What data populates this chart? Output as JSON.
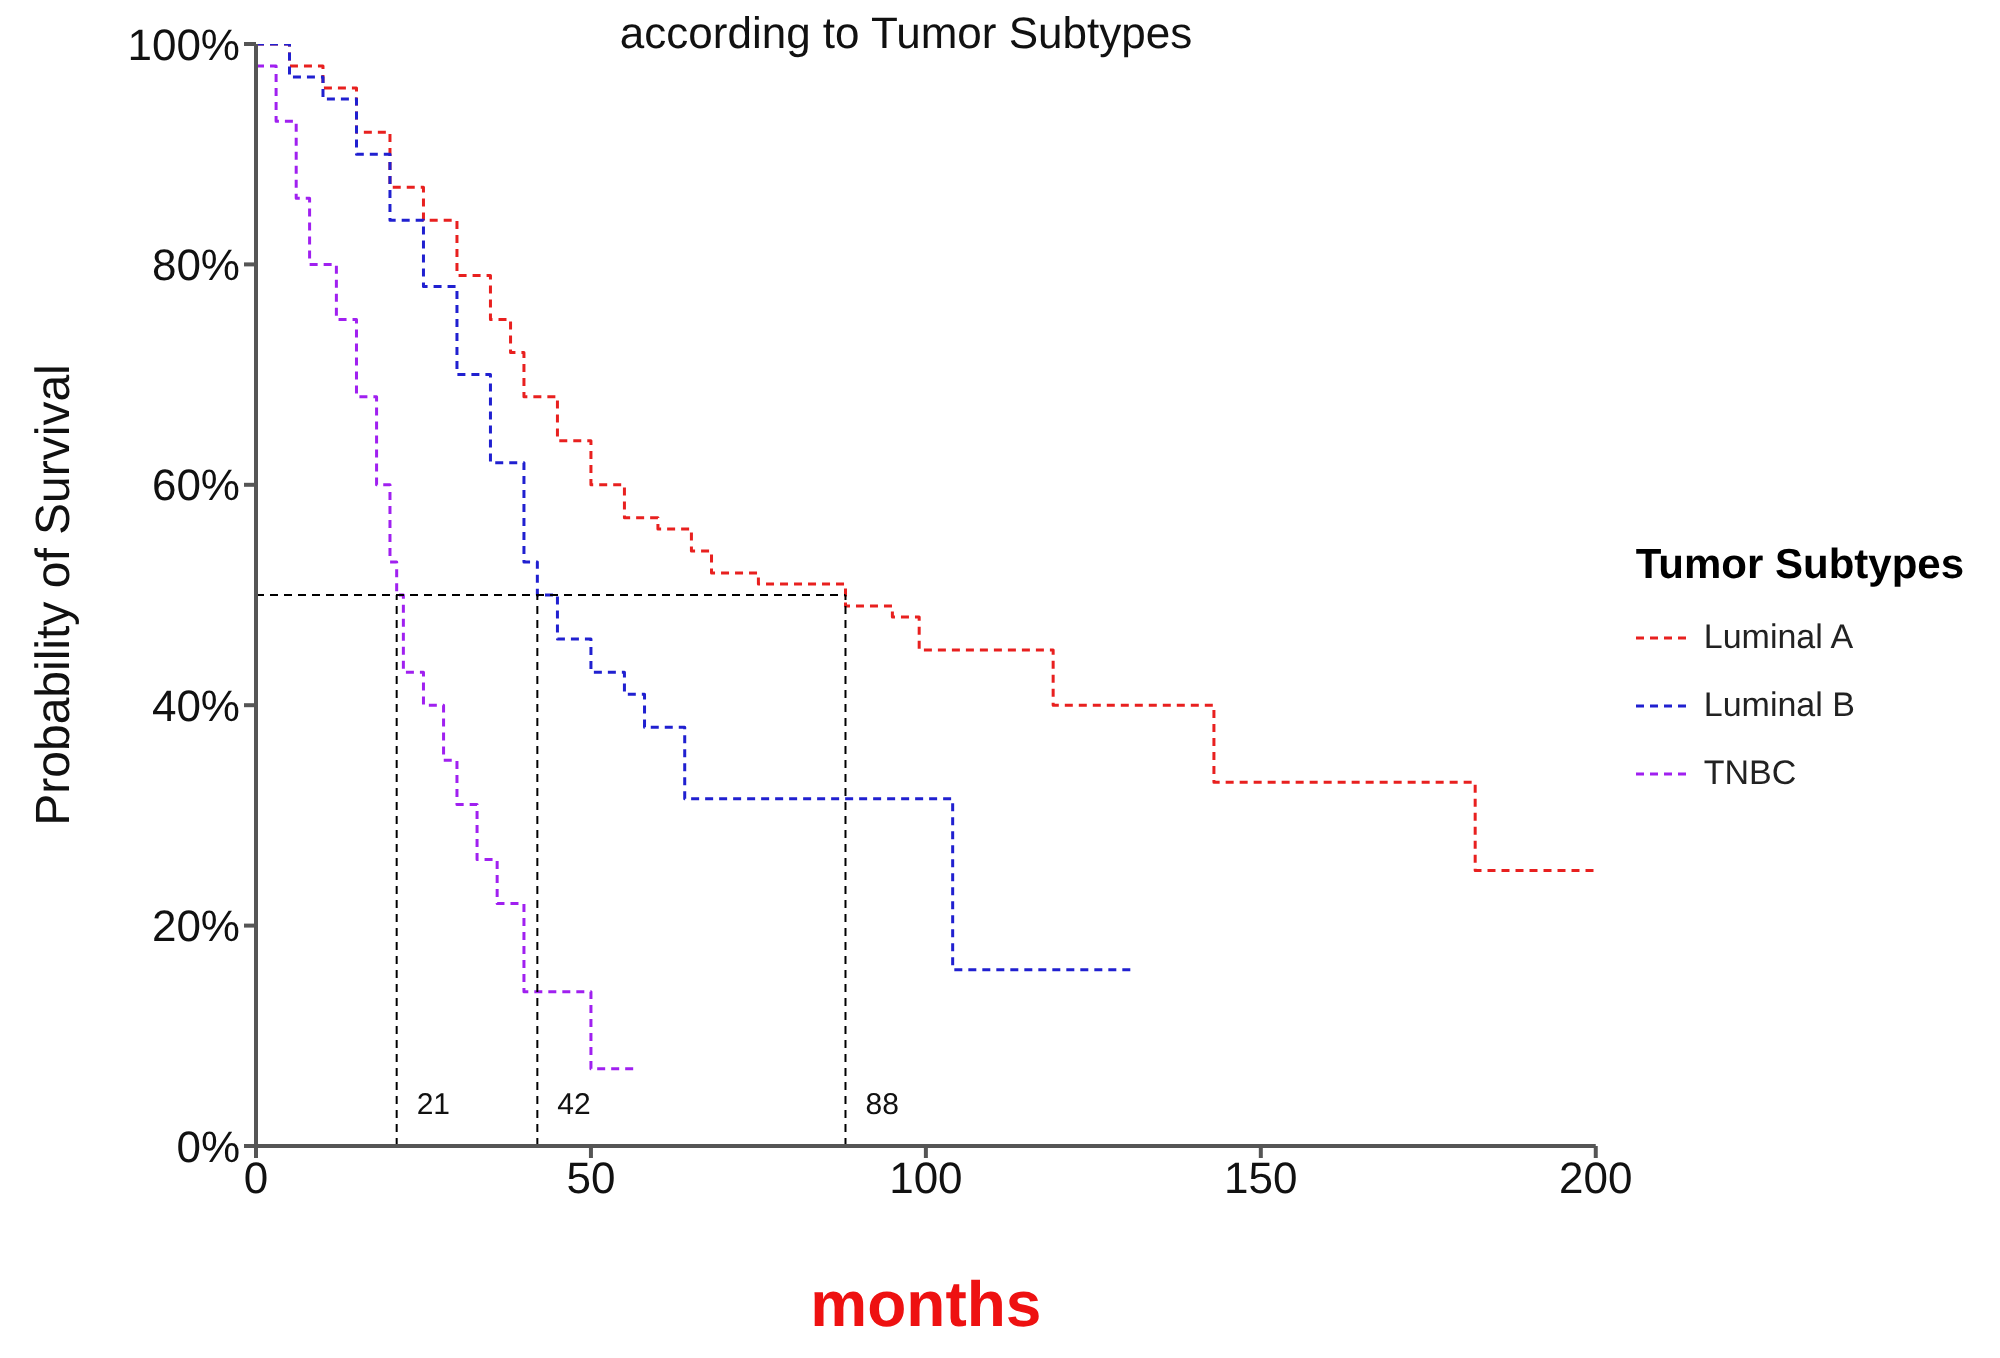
{
  "chart_data": {
    "type": "step",
    "title": "according to Tumor Subtypes",
    "xlabel": "months",
    "ylabel": "Probability of Survival",
    "legend_title": "Tumor Subtypes",
    "legend": "right",
    "line_style": "dashed",
    "grid": false,
    "xlim": [
      0,
      200
    ],
    "xticks": [
      0,
      50,
      100,
      150,
      200
    ],
    "ylim": [
      0,
      100
    ],
    "yticks": [
      {
        "value": 0,
        "label": "0%"
      },
      {
        "value": 20,
        "label": "20%"
      },
      {
        "value": 40,
        "label": "40%"
      },
      {
        "value": 60,
        "label": "60%"
      },
      {
        "value": 80,
        "label": "80%"
      },
      {
        "value": 100,
        "label": "100%"
      }
    ],
    "series": [
      {
        "name": "Luminal A",
        "color": "#e8201f",
        "x": [
          0,
          5,
          10,
          15,
          20,
          25,
          30,
          35,
          38,
          40,
          45,
          50,
          55,
          60,
          65,
          68,
          75,
          88,
          95,
          99,
          119,
          143,
          182,
          200
        ],
        "values": [
          100,
          98,
          96,
          92,
          87,
          84,
          79,
          75,
          72,
          68,
          64,
          60,
          57,
          56,
          54,
          52,
          51,
          49,
          48,
          45,
          40,
          33,
          25,
          25
        ]
      },
      {
        "name": "Luminal B",
        "color": "#2020d0",
        "x": [
          0,
          5,
          10,
          15,
          20,
          25,
          30,
          35,
          40,
          42,
          45,
          50,
          55,
          58,
          64,
          104,
          131
        ],
        "values": [
          100,
          97,
          95,
          90,
          84,
          78,
          70,
          62,
          53,
          50,
          46,
          43,
          41,
          38,
          31.5,
          16,
          16
        ]
      },
      {
        "name": "TNBC",
        "color": "#a020f0",
        "x": [
          0,
          3,
          6,
          8,
          12,
          15,
          18,
          20,
          21,
          22,
          25,
          28,
          30,
          33,
          36,
          40,
          50,
          57
        ],
        "values": [
          98,
          93,
          86,
          80,
          75,
          68,
          60,
          53,
          50,
          43,
          40,
          35,
          31,
          26,
          22,
          14,
          7,
          7
        ]
      }
    ],
    "ref_lines": [
      {
        "axis": "y",
        "value": 50,
        "label": null,
        "color": "#000000",
        "line_style": "dashed"
      },
      {
        "axis": "x",
        "value": 21,
        "label": "21",
        "color": "#000000",
        "line_style": "dashed"
      },
      {
        "axis": "x",
        "value": 42,
        "label": "42",
        "color": "#000000",
        "line_style": "dashed"
      },
      {
        "axis": "x",
        "value": 88,
        "label": "88",
        "color": "#000000",
        "line_style": "dashed"
      }
    ]
  }
}
